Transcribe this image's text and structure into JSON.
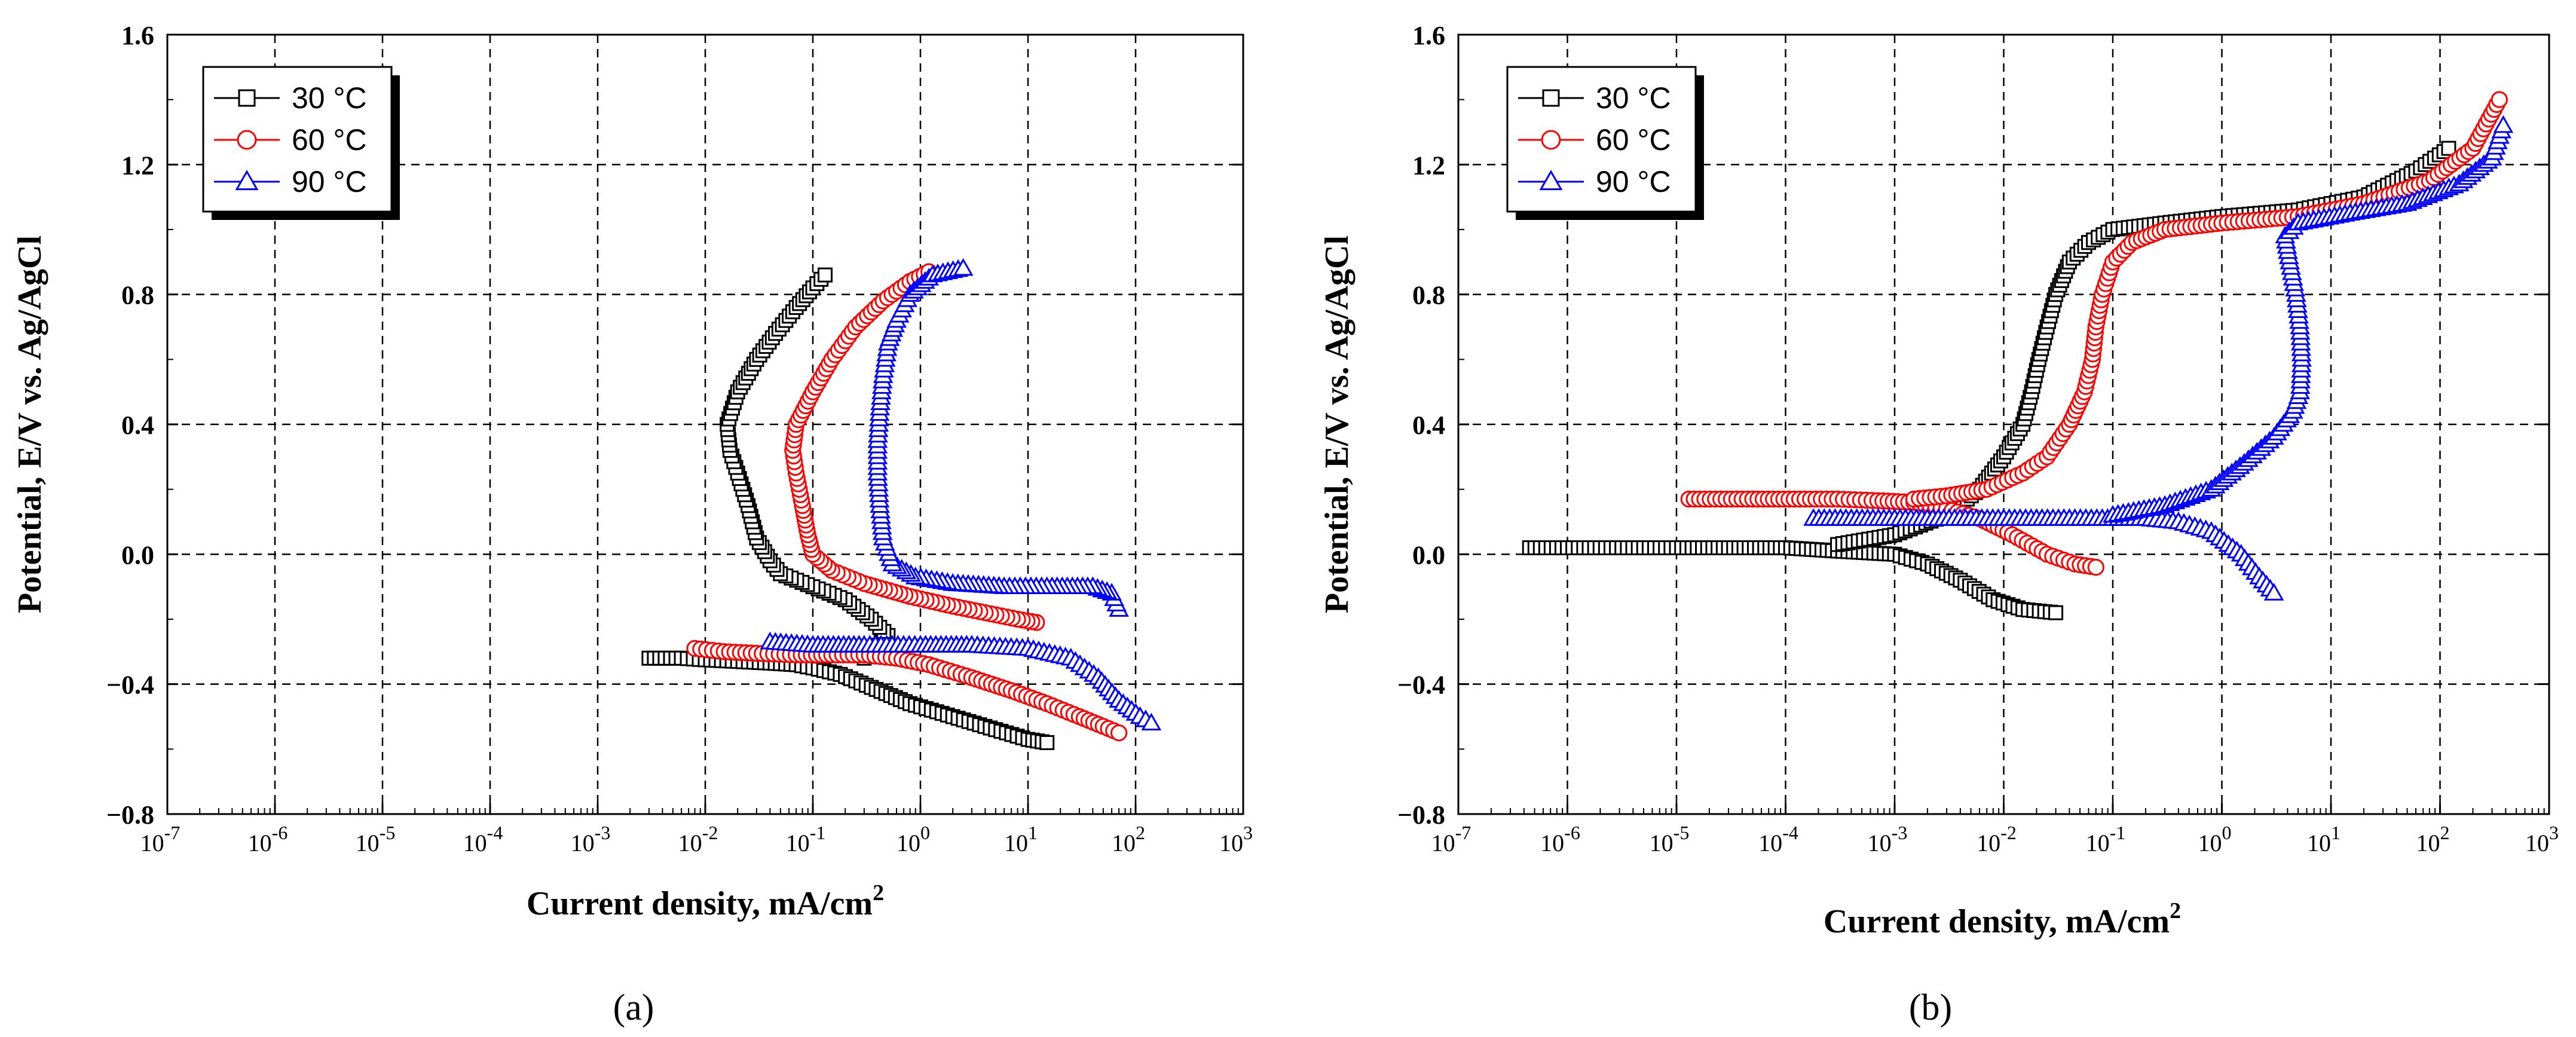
{
  "chart_data": [
    {
      "type": "line",
      "panel_label": "(a)",
      "xscale": "log",
      "xlabel": "Current density, mA/cm",
      "xlabel_superscript": "2",
      "ylabel": "Potential, E/V vs. Ag/AgCl",
      "xlim_exp": [
        -7,
        3
      ],
      "ylim": [
        -0.8,
        1.6
      ],
      "yticks": [
        "-0.8",
        "-0.4",
        "0.0",
        "0.4",
        "0.8",
        "1.2",
        "1.6"
      ],
      "xtick_exponents": [
        "-7",
        "-6",
        "-5",
        "-4",
        "-3",
        "-2",
        "-1",
        "0",
        "1",
        "2",
        "3"
      ],
      "grid": true,
      "legend_position": "top-left",
      "series": [
        {
          "name": "30 °C",
          "color": "#000000",
          "marker": "square",
          "points": [
            [
              0.003,
              -0.32
            ],
            [
              0.006,
              -0.32
            ],
            [
              0.01,
              -0.325
            ],
            [
              0.02,
              -0.33
            ],
            [
              0.04,
              -0.335
            ],
            [
              0.07,
              -0.34
            ],
            [
              0.1,
              -0.35
            ],
            [
              0.18,
              -0.37
            ],
            [
              0.35,
              -0.41
            ],
            [
              0.8,
              -0.46
            ],
            [
              2,
              -0.5
            ],
            [
              5,
              -0.54
            ],
            [
              10,
              -0.57
            ],
            [
              15,
              -0.58
            ]
          ],
          "anodic": [
            [
              0.3,
              -0.32
            ],
            [
              0.4,
              -0.28
            ],
            [
              0.5,
              -0.25
            ],
            [
              0.35,
              -0.2
            ],
            [
              0.2,
              -0.14
            ],
            [
              0.1,
              -0.1
            ],
            [
              0.05,
              -0.06
            ],
            [
              0.04,
              -0.02
            ],
            [
              0.03,
              0.05
            ],
            [
              0.025,
              0.15
            ],
            [
              0.02,
              0.25
            ],
            [
              0.017,
              0.32
            ],
            [
              0.016,
              0.4
            ],
            [
              0.02,
              0.5
            ],
            [
              0.03,
              0.6
            ],
            [
              0.045,
              0.68
            ],
            [
              0.07,
              0.76
            ],
            [
              0.1,
              0.82
            ],
            [
              0.13,
              0.86
            ]
          ]
        },
        {
          "name": "60 °C",
          "color": "#ff0000",
          "marker": "circle",
          "points": [
            [
              0.008,
              -0.29
            ],
            [
              0.015,
              -0.3
            ],
            [
              0.03,
              -0.305
            ],
            [
              0.07,
              -0.31
            ],
            [
              0.15,
              -0.31
            ],
            [
              0.3,
              -0.31
            ],
            [
              0.6,
              -0.32
            ],
            [
              1.2,
              -0.34
            ],
            [
              3,
              -0.38
            ],
            [
              7,
              -0.42
            ],
            [
              15,
              -0.46
            ],
            [
              30,
              -0.5
            ],
            [
              50,
              -0.53
            ],
            [
              70,
              -0.55
            ]
          ],
          "anodic": [
            [
              12,
              -0.21
            ],
            [
              8,
              -0.2
            ],
            [
              4,
              -0.18
            ],
            [
              2,
              -0.16
            ],
            [
              0.8,
              -0.13
            ],
            [
              0.3,
              -0.09
            ],
            [
              0.15,
              -0.05
            ],
            [
              0.1,
              0.0
            ],
            [
              0.09,
              0.06
            ],
            [
              0.08,
              0.15
            ],
            [
              0.07,
              0.25
            ],
            [
              0.065,
              0.32
            ],
            [
              0.07,
              0.4
            ],
            [
              0.1,
              0.5
            ],
            [
              0.15,
              0.6
            ],
            [
              0.25,
              0.7
            ],
            [
              0.45,
              0.78
            ],
            [
              0.8,
              0.84
            ],
            [
              1.2,
              0.87
            ]
          ]
        },
        {
          "name": "90 °C",
          "color": "#0000ff",
          "marker": "triangle",
          "points": [
            [
              0.04,
              -0.27
            ],
            [
              0.1,
              -0.28
            ],
            [
              0.3,
              -0.28
            ],
            [
              1,
              -0.28
            ],
            [
              3,
              -0.28
            ],
            [
              10,
              -0.29
            ],
            [
              25,
              -0.32
            ],
            [
              45,
              -0.38
            ],
            [
              70,
              -0.45
            ],
            [
              110,
              -0.5
            ],
            [
              140,
              -0.52
            ]
          ],
          "anodic": [
            [
              70,
              -0.17
            ],
            [
              60,
              -0.12
            ],
            [
              40,
              -0.1
            ],
            [
              15,
              -0.1
            ],
            [
              6,
              -0.1
            ],
            [
              2,
              -0.09
            ],
            [
              0.9,
              -0.07
            ],
            [
              0.55,
              -0.03
            ],
            [
              0.45,
              0.05
            ],
            [
              0.42,
              0.15
            ],
            [
              0.4,
              0.25
            ],
            [
              0.4,
              0.35
            ],
            [
              0.42,
              0.45
            ],
            [
              0.45,
              0.55
            ],
            [
              0.5,
              0.65
            ],
            [
              0.6,
              0.72
            ],
            [
              0.8,
              0.8
            ],
            [
              1.3,
              0.86
            ],
            [
              2.5,
              0.88
            ]
          ]
        }
      ]
    },
    {
      "type": "line",
      "panel_label": "(b)",
      "xscale": "log",
      "xlabel": "Current density, mA/cm",
      "xlabel_superscript": "2",
      "ylabel": "Potential, E/V vs. Ag/AgCl",
      "xlim_exp": [
        -7,
        3
      ],
      "ylim": [
        -0.8,
        1.6
      ],
      "yticks": [
        "-0.8",
        "-0.4",
        "0.0",
        "0.4",
        "0.8",
        "1.2",
        "1.6"
      ],
      "xtick_exponents": [
        "-7",
        "-6",
        "-5",
        "-4",
        "-3",
        "-2",
        "-1",
        "0",
        "1",
        "2",
        "3"
      ],
      "grid": true,
      "legend_position": "top-left",
      "series": [
        {
          "name": "30 °C",
          "color": "#000000",
          "marker": "square",
          "points": [
            [
              4.5e-07,
              0.02
            ],
            [
              1e-06,
              0.02
            ],
            [
              1e-05,
              0.02
            ],
            [
              3e-05,
              0.02
            ],
            [
              0.0001,
              0.02
            ],
            [
              0.0003,
              0.01
            ],
            [
              0.001,
              0.0
            ],
            [
              0.002,
              -0.03
            ],
            [
              0.004,
              -0.08
            ],
            [
              0.008,
              -0.14
            ],
            [
              0.015,
              -0.17
            ],
            [
              0.03,
              -0.18
            ]
          ],
          "anodic": [
            [
              0.0003,
              0.03
            ],
            [
              0.001,
              0.06
            ],
            [
              0.003,
              0.12
            ],
            [
              0.006,
              0.2
            ],
            [
              0.01,
              0.3
            ],
            [
              0.015,
              0.4
            ],
            [
              0.018,
              0.5
            ],
            [
              0.021,
              0.6
            ],
            [
              0.025,
              0.7
            ],
            [
              0.03,
              0.8
            ],
            [
              0.04,
              0.9
            ],
            [
              0.06,
              0.96
            ],
            [
              0.1,
              1.0
            ],
            [
              0.3,
              1.02
            ],
            [
              1,
              1.04
            ],
            [
              5,
              1.06
            ],
            [
              20,
              1.1
            ],
            [
              60,
              1.18
            ],
            [
              120,
              1.25
            ]
          ]
        },
        {
          "name": "60 °C",
          "color": "#ff0000",
          "marker": "circle",
          "points": [
            [
              1.3e-05,
              0.17
            ],
            [
              5e-05,
              0.17
            ],
            [
              0.00012,
              0.17
            ],
            [
              0.0003,
              0.17
            ],
            [
              0.0007,
              0.165
            ],
            [
              0.0015,
              0.16
            ],
            [
              0.003,
              0.14
            ],
            [
              0.006,
              0.11
            ],
            [
              0.012,
              0.06
            ],
            [
              0.025,
              0.0
            ],
            [
              0.045,
              -0.03
            ],
            [
              0.07,
              -0.04
            ]
          ],
          "anodic": [
            [
              0.0015,
              0.17
            ],
            [
              0.003,
              0.18
            ],
            [
              0.007,
              0.2
            ],
            [
              0.015,
              0.25
            ],
            [
              0.025,
              0.3
            ],
            [
              0.04,
              0.4
            ],
            [
              0.055,
              0.5
            ],
            [
              0.065,
              0.6
            ],
            [
              0.07,
              0.7
            ],
            [
              0.08,
              0.8
            ],
            [
              0.1,
              0.9
            ],
            [
              0.15,
              0.96
            ],
            [
              0.3,
              1.0
            ],
            [
              1,
              1.02
            ],
            [
              5,
              1.04
            ],
            [
              20,
              1.08
            ],
            [
              80,
              1.15
            ],
            [
              200,
              1.25
            ],
            [
              350,
              1.4
            ]
          ]
        },
        {
          "name": "90 °C",
          "color": "#0000ff",
          "marker": "triangle",
          "points": [
            [
              0.00018,
              0.11
            ],
            [
              0.001,
              0.11
            ],
            [
              0.005,
              0.11
            ],
            [
              0.02,
              0.11
            ],
            [
              0.08,
              0.11
            ],
            [
              0.2,
              0.11
            ],
            [
              0.4,
              0.1
            ],
            [
              0.8,
              0.07
            ],
            [
              1.5,
              0.0
            ],
            [
              2.2,
              -0.07
            ],
            [
              3,
              -0.12
            ]
          ],
          "anodic": [
            [
              0.1,
              0.12
            ],
            [
              0.3,
              0.15
            ],
            [
              0.8,
              0.2
            ],
            [
              1.6,
              0.28
            ],
            [
              3,
              0.36
            ],
            [
              4.5,
              0.44
            ],
            [
              5.2,
              0.5
            ],
            [
              5.4,
              0.6
            ],
            [
              5.2,
              0.7
            ],
            [
              4.8,
              0.8
            ],
            [
              4.2,
              0.9
            ],
            [
              3.8,
              0.98
            ],
            [
              5,
              1.02
            ],
            [
              15,
              1.05
            ],
            [
              50,
              1.08
            ],
            [
              150,
              1.14
            ],
            [
              300,
              1.22
            ],
            [
              380,
              1.32
            ]
          ]
        }
      ]
    }
  ]
}
